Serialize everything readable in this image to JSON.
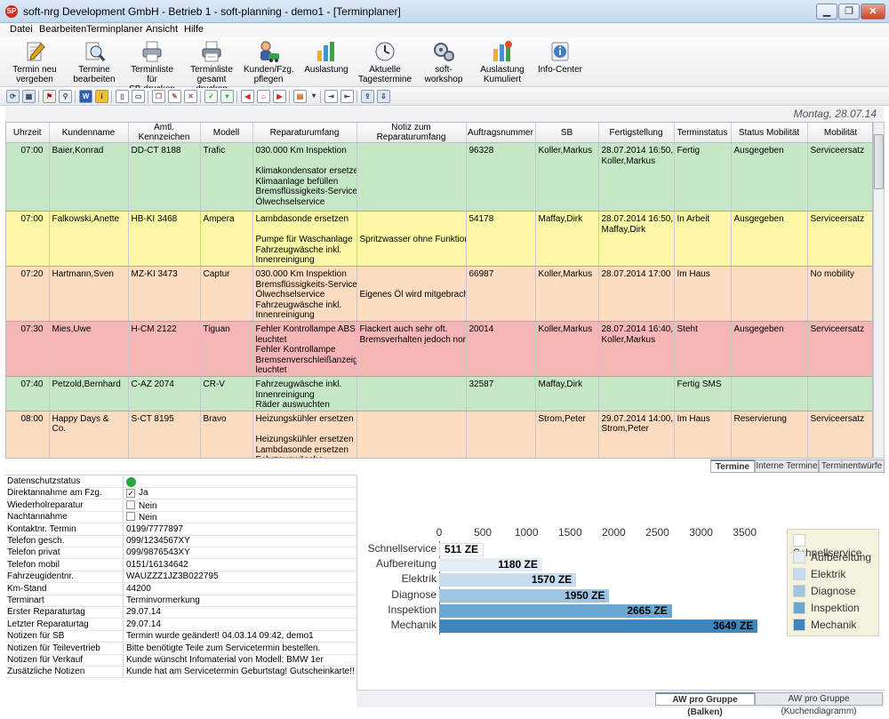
{
  "window": {
    "title": "soft-nrg Development GmbH - Betrieb 1 - soft-planning - demo1 - [Terminplaner]",
    "app_icon": "SP"
  },
  "menu": [
    "Datei",
    "Bearbeiten",
    "Terminplaner",
    "Ansicht",
    "Hilfe"
  ],
  "toolbar": [
    {
      "label": [
        "Termin neu",
        "vergeben"
      ],
      "icon": "pencil-paper-icon"
    },
    {
      "label": [
        "Termine",
        "bearbeiten"
      ],
      "icon": "magnifier-paper-icon"
    },
    {
      "label": [
        "Terminliste für",
        "SB drucken"
      ],
      "icon": "printer-icon"
    },
    {
      "label": [
        "Terminliste",
        "gesamt drucken"
      ],
      "icon": "printer-list-icon"
    },
    {
      "label": [
        "Kunden/Fzg.",
        "pflegen"
      ],
      "icon": "customer-icon"
    },
    {
      "label": [
        "Auslastung"
      ],
      "icon": "bar-chart-icon"
    },
    {
      "label": [
        "Aktuelle",
        "Tagestermine"
      ],
      "icon": "clock-icon"
    },
    {
      "label": [
        "soft-workshop"
      ],
      "icon": "gears-icon"
    },
    {
      "label": [
        "Auslastung",
        "Kumuliert"
      ],
      "icon": "stacked-chart-icon"
    },
    {
      "label": [
        "Info-Center"
      ],
      "icon": "info-icon"
    }
  ],
  "date_header": "Montag, 28.07.14",
  "columns": [
    "Uhrzeit",
    "Kundenname",
    "Amtl. Kennzeichen",
    "Modell",
    "Reparaturumfang",
    "Notiz zum Reparaturumfang",
    "Auftragsnummer",
    "SB",
    "Fertigstellung",
    "Terminstatus",
    "Status Mobilität",
    "Mobilität"
  ],
  "rows": [
    {
      "status_color": "green",
      "time": "07:00",
      "customer": "Baier,Konrad",
      "plate": "DD-CT 8188",
      "model": "Trafic",
      "repair": [
        "030.000 Km Inspektion",
        "",
        "Klimakondensator ersetzen",
        "Klimaanlage befüllen",
        "Bremsflüssigkeits-Service",
        "Ölwechselservice"
      ],
      "note": [],
      "order": "96328",
      "sb": "Koller,Markus",
      "finish": [
        "28.07.2014 16:50,",
        "Koller,Markus"
      ],
      "status": "Fertig",
      "mob_status": "Ausgegeben",
      "mobility": "Serviceersatz"
    },
    {
      "status_color": "yellow",
      "time": "07:00",
      "customer": "Falkowski,Anette",
      "plate": "HB-KI 3468",
      "model": "Ampera",
      "repair": [
        "Lambdasonde ersetzen",
        "",
        "Pumpe für Waschanlage",
        "Fahrzeugwäsche inkl.",
        "Innenreinigung"
      ],
      "note": [
        "",
        "",
        "Spritzwasser ohne Funktion."
      ],
      "order": "54178",
      "sb": "Maffay,Dirk",
      "finish": [
        "28.07.2014 16:50,",
        "Maffay,Dirk"
      ],
      "status": "In Arbeit",
      "mob_status": "Ausgegeben",
      "mobility": "Serviceersatz"
    },
    {
      "status_color": "orange",
      "time": "07:20",
      "customer": "Hartmann,Sven",
      "plate": "MZ-KI 3473",
      "model": "Captur",
      "repair": [
        "030.000 Km Inspektion",
        "Bremsflüssigkeits-Service",
        "Ölwechselservice",
        "Fahrzeugwäsche inkl.",
        "Innenreinigung"
      ],
      "note": [
        "",
        "",
        "Eigenes Öl wird mitgebracht."
      ],
      "order": "66987",
      "sb": "Koller,Markus",
      "finish": [
        "28.07.2014 17:00"
      ],
      "status": "Im Haus",
      "mob_status": "",
      "mobility": "No mobility"
    },
    {
      "status_color": "red",
      "time": "07:30",
      "customer": "Mies,Uwe",
      "plate": "H-CM 2122",
      "model": "Tiguan",
      "repair": [
        "Fehler Kontrollampe ABS",
        "leuchtet",
        "Fehler Kontrollampe",
        "Bremsenverschleißanzeige",
        "leuchtet"
      ],
      "note": [
        "Flackert auch sehr oft.",
        "Bremsverhalten jedoch normal."
      ],
      "order": "20014",
      "sb": "Koller,Markus",
      "finish": [
        "28.07.2014 16:40,",
        "Koller,Markus"
      ],
      "status": "Steht",
      "mob_status": "Ausgegeben",
      "mobility": "Serviceersatz"
    },
    {
      "status_color": "green",
      "time": "07:40",
      "customer": "Petzold,Bernhard",
      "plate": "C-AZ 2074",
      "model": "CR-V",
      "repair": [
        "Fahrzeugwäsche inkl.",
        "Innenreinigung",
        "Räder auswuchten"
      ],
      "note": [],
      "order": "32587",
      "sb": "Maffay,Dirk",
      "finish": [],
      "status": "Fertig SMS",
      "mob_status": "",
      "mobility": ""
    },
    {
      "status_color": "orange",
      "time": "08:00",
      "customer": "Happy Days & Co.",
      "plate": "S-CT 8195",
      "model": "Bravo",
      "repair": [
        "Heizungskühler ersetzen",
        "",
        "Heizungskühler ersetzen",
        "Lambdasonde ersetzen",
        "Fahrzeugwäsche"
      ],
      "note": [],
      "order": "",
      "sb": "Strom,Peter",
      "finish": [
        "29.07.2014 14:00,",
        "Strom,Peter"
      ],
      "status": "Im Haus",
      "mob_status": "Reservierung",
      "mobility": "Serviceersatz"
    }
  ],
  "grid_tabs": [
    "Termine",
    "Interne Termine",
    "Terminentwürfe"
  ],
  "details": [
    {
      "label": "Datenschutzstatus",
      "value": "",
      "kind": "lock"
    },
    {
      "label": "Direktannahme am Fzg.",
      "value": "Ja",
      "kind": "check",
      "checked": true
    },
    {
      "label": "Wiederholreparatur",
      "value": "Nein",
      "kind": "check",
      "checked": false
    },
    {
      "label": "Nachtannahme",
      "value": "Nein",
      "kind": "check",
      "checked": false
    },
    {
      "label": "Kontaktnr. Termin",
      "value": "0199/7777897"
    },
    {
      "label": "Telefon gesch.",
      "value": "099/1234567XY"
    },
    {
      "label": "Telefon privat",
      "value": "099/9876543XY"
    },
    {
      "label": "Telefon mobil",
      "value": "0151/16134642"
    },
    {
      "label": "Fahrzeugidentnr.",
      "value": "WAUZZZ1JZ3B022795"
    },
    {
      "label": "Km-Stand",
      "value": "44200"
    },
    {
      "label": "Terminart",
      "value": "Terminvormerkung"
    },
    {
      "label": "Erster Reparaturtag",
      "value": "29.07.14"
    },
    {
      "label": "Letzter Reparaturtag",
      "value": "29.07.14"
    },
    {
      "label": "Notizen für SB",
      "value": "Termin wurde geändert! 04.03.14 09:42, demo1"
    },
    {
      "label": "Notizen für Teilevertrieb",
      "value": "Bitte benötigte Teile zum Servicetermin bestellen."
    },
    {
      "label": "Notizen für Verkauf",
      "value": "Kunde wünscht Infomaterial von Modell: BMW 1er"
    },
    {
      "label": "Zusätzliche Notizen",
      "value": "Kunde hat am Servicetermin Geburtstag! Gutscheinkarte!!"
    }
  ],
  "chart_data": {
    "type": "bar",
    "orientation": "horizontal",
    "categories": [
      "Schnellservice",
      "Aufbereitung",
      "Elektrik",
      "Diagnose",
      "Inspektion",
      "Mechanik"
    ],
    "values": [
      511,
      1180,
      1570,
      1950,
      2665,
      3649
    ],
    "value_labels": [
      "511 ZE",
      "1180 ZE",
      "1570 ZE",
      "1950 ZE",
      "2665 ZE",
      "3649 ZE"
    ],
    "xlim": [
      0,
      3500
    ],
    "ticks": [
      0,
      500,
      1000,
      1500,
      2000,
      2500,
      3000,
      3500
    ],
    "tick_position": "top",
    "colors": [
      "#ffffff",
      "#e3edf6",
      "#c6dbee",
      "#9fc5e2",
      "#6aa8d2",
      "#3e86c0"
    ],
    "legend": [
      "Schnellservice",
      "Aufbereitung",
      "Elektrik",
      "Diagnose",
      "Inspektion",
      "Mechanik"
    ],
    "legend_position": "right"
  },
  "chart_tabs": [
    "AW pro Gruppe (Balken)",
    "AW pro Gruppe (Kuchendiagramm)"
  ]
}
